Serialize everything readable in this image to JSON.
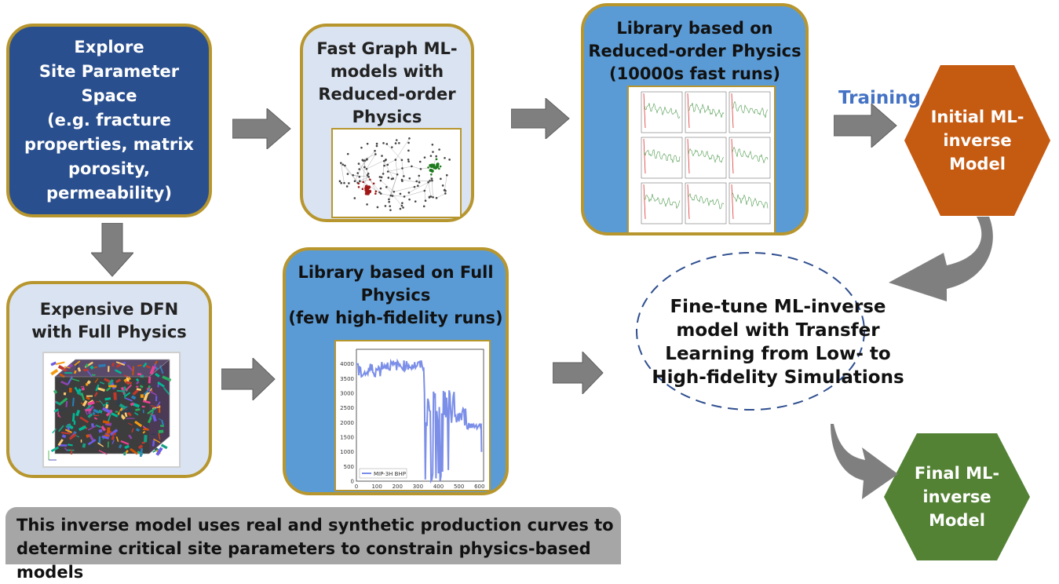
{
  "explore_box": {
    "lines": [
      "Explore",
      "Site Parameter",
      "Space",
      "(e.g. fracture",
      "properties, matrix",
      "porosity,",
      "permeability)"
    ]
  },
  "graph_ml_box": {
    "lines": [
      "Fast Graph ML-",
      "models with",
      "Reduced-order",
      "Physics"
    ]
  },
  "reduced_library_box": {
    "lines": [
      "Library based on",
      "Reduced-order Physics",
      "(10000s fast runs)"
    ]
  },
  "training_label": "Training",
  "initial_model_hex": {
    "lines": [
      "Initial ML-",
      "inverse",
      "Model"
    ]
  },
  "expensive_dfn_box": {
    "lines": [
      "Expensive DFN",
      "with Full Physics"
    ]
  },
  "full_library_box": {
    "lines": [
      "Library based on Full",
      "Physics",
      "(few high-fidelity runs)"
    ]
  },
  "finetune_text": {
    "lines": [
      "Fine-tune ML-inverse",
      "model with Transfer",
      "Learning from Low- to",
      "High-fidelity Simulations"
    ]
  },
  "final_model_hex": {
    "lines": [
      "Final ML-",
      "inverse",
      "Model"
    ]
  },
  "footer_note": {
    "lines": [
      "This inverse model uses real and synthetic production curves to",
      "determine critical site parameters to constrain physics-based models"
    ]
  },
  "bhp_chart": {
    "legend": "MIP-3H BHP",
    "y_ticks": [
      "4000",
      "3500",
      "3000",
      "2500",
      "2000",
      "1500",
      "1000",
      "500",
      "0"
    ],
    "x_ticks": [
      "0",
      "100",
      "200",
      "300",
      "400",
      "500",
      "600"
    ]
  },
  "colors": {
    "dark_box": "#2a4f8e",
    "light_box": "#dae3f1",
    "blue_box": "#5b9bd5",
    "gold_border": "#b8962e",
    "orange_hex": "#c55a11",
    "green_hex": "#548235",
    "arrow_gray": "#7f7f7f",
    "training_text": "#4472c4"
  }
}
